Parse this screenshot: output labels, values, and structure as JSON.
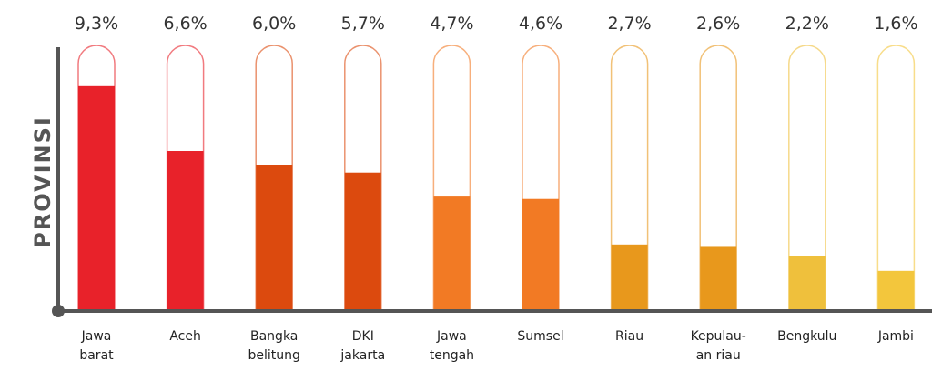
{
  "chart_data": {
    "type": "bar",
    "y_label": "PROVINSI",
    "categories": [
      "Jawa\nbarat",
      "Aceh",
      "Bangka\nbelitung",
      "DKI\njakarta",
      "Jawa\ntengah",
      "Sumsel",
      "Riau",
      "Kepulau-\nan riau",
      "Bengkulu",
      "Jambi"
    ],
    "values": [
      9.3,
      6.6,
      6.0,
      5.7,
      4.7,
      4.6,
      2.7,
      2.6,
      2.2,
      1.6
    ],
    "value_labels": [
      "9,3%",
      "6,6%",
      "6,0%",
      "5,7%",
      "4,7%",
      "4,6%",
      "2,7%",
      "2,6%",
      "2,2%",
      "1,6%"
    ],
    "colors": [
      "#e8222a",
      "#e8222a",
      "#dc4a0e",
      "#dc4a0e",
      "#f27a24",
      "#f27a24",
      "#e8981c",
      "#e8981c",
      "#efc03c",
      "#f3c63c"
    ],
    "ylim": [
      0,
      11
    ]
  }
}
